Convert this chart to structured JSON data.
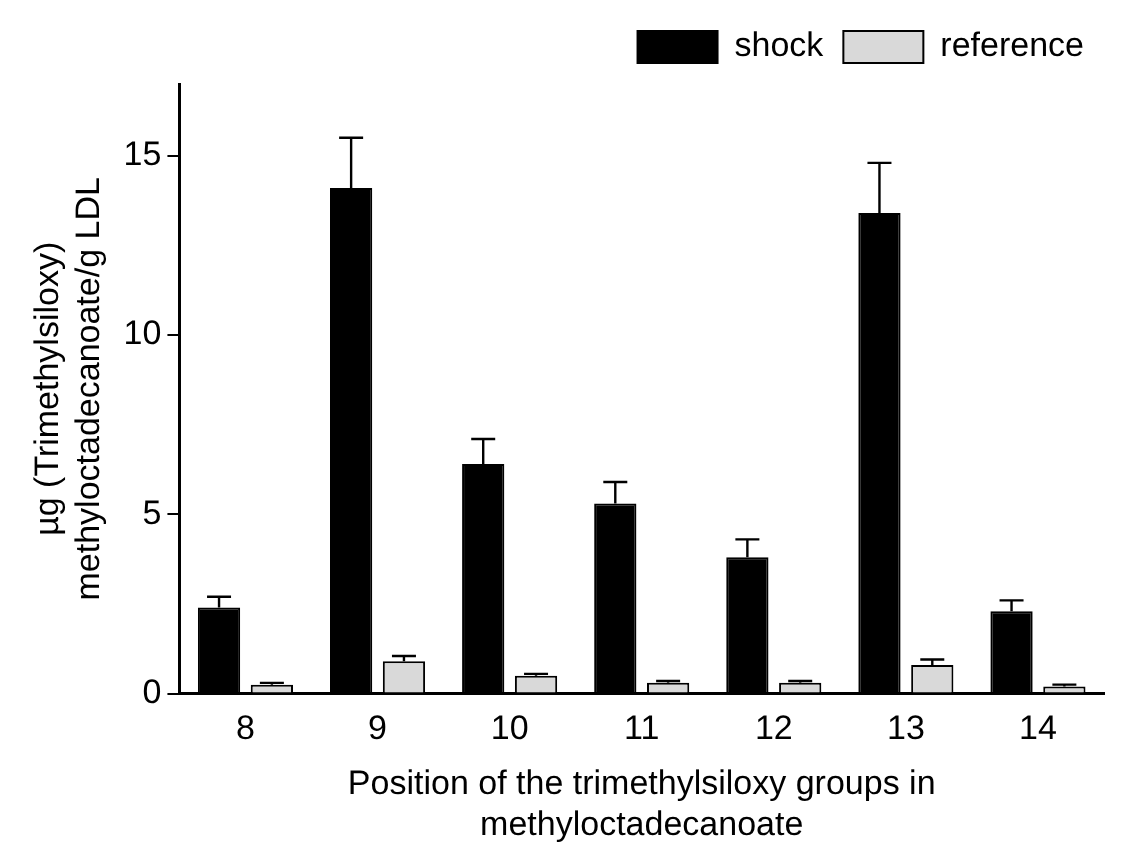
{
  "chart_data": {
    "type": "bar",
    "xlabel": "Position of the trimethylsiloxy groups in\nmethyloctadecanoate",
    "ylabel": "µg (Trimethylsiloxy)\nmethyloctadecanoate/g LDL",
    "categories": [
      "8",
      "9",
      "10",
      "11",
      "12",
      "13",
      "14"
    ],
    "series": [
      {
        "name": "shock",
        "color": "#000000",
        "values": [
          2.4,
          14.1,
          6.4,
          5.3,
          3.8,
          13.4,
          2.3
        ],
        "errors": [
          0.3,
          1.4,
          0.7,
          0.6,
          0.5,
          1.4,
          0.3
        ]
      },
      {
        "name": "reference",
        "color": "#d9d9d9",
        "values": [
          0.25,
          0.9,
          0.5,
          0.3,
          0.3,
          0.8,
          0.2
        ],
        "errors": [
          0.05,
          0.15,
          0.05,
          0.05,
          0.05,
          0.15,
          0.05
        ]
      }
    ],
    "ylim": [
      0,
      17
    ],
    "yticks": [
      0,
      5,
      10,
      15
    ],
    "grid": false,
    "legend": "top right"
  }
}
